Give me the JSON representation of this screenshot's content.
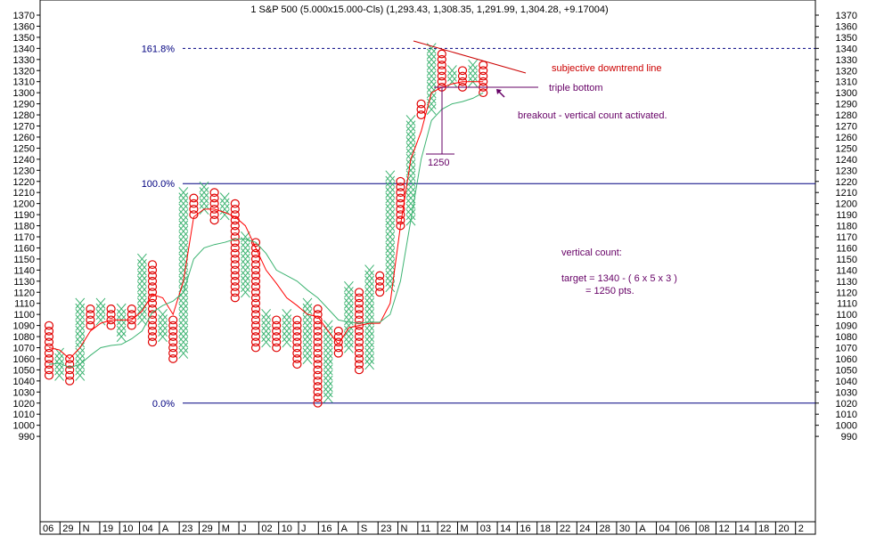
{
  "chart_data": {
    "type": "point-and-figure",
    "title": "1 S&P 500 (5.000x15.000-Cls) (1,293.43, 1,308.35, 1,291.99, 1,304.28, +9.17004)",
    "box_size": 5,
    "reversal": 3,
    "ylim": [
      985,
      1375
    ],
    "y_ticks": [
      990,
      1000,
      1010,
      1020,
      1030,
      1040,
      1050,
      1060,
      1070,
      1080,
      1090,
      1100,
      1110,
      1120,
      1130,
      1140,
      1150,
      1160,
      1170,
      1180,
      1190,
      1200,
      1210,
      1220,
      1230,
      1240,
      1250,
      1260,
      1270,
      1280,
      1290,
      1300,
      1310,
      1320,
      1330,
      1340,
      1350,
      1360,
      1370
    ],
    "x_labels": [
      "06",
      "29",
      "N",
      "19",
      "10",
      "04",
      "A",
      "23",
      "29",
      "M",
      "J",
      "02",
      "10",
      "J",
      "16",
      "A",
      "S",
      "23",
      "N",
      "11",
      "22",
      "M",
      "03",
      "14",
      "16",
      "18",
      "22",
      "24",
      "28",
      "30",
      "A",
      "04",
      "06",
      "08",
      "12",
      "14",
      "18",
      "20",
      "2"
    ],
    "fib_levels": [
      {
        "label": "161.8%",
        "value": 1340,
        "style": "dashed"
      },
      {
        "label": "100.0%",
        "value": 1218,
        "style": "solid"
      },
      {
        "label": "0.0%",
        "value": 1020,
        "style": "solid"
      }
    ],
    "columns": [
      {
        "type": "O",
        "high": 1090,
        "low": 1045
      },
      {
        "type": "X",
        "high": 1065,
        "low": 1045
      },
      {
        "type": "O",
        "high": 1060,
        "low": 1040
      },
      {
        "type": "X",
        "high": 1110,
        "low": 1045
      },
      {
        "type": "O",
        "high": 1105,
        "low": 1090
      },
      {
        "type": "X",
        "high": 1110,
        "low": 1095
      },
      {
        "type": "O",
        "high": 1105,
        "low": 1090
      },
      {
        "type": "X",
        "high": 1105,
        "low": 1080
      },
      {
        "type": "O",
        "high": 1105,
        "low": 1090
      },
      {
        "type": "X",
        "high": 1150,
        "low": 1095
      },
      {
        "type": "O",
        "high": 1145,
        "low": 1075
      },
      {
        "type": "X",
        "high": 1100,
        "low": 1080
      },
      {
        "type": "O",
        "high": 1095,
        "low": 1060
      },
      {
        "type": "X",
        "high": 1210,
        "low": 1065
      },
      {
        "type": "O",
        "high": 1205,
        "low": 1190
      },
      {
        "type": "X",
        "high": 1215,
        "low": 1195
      },
      {
        "type": "O",
        "high": 1210,
        "low": 1185
      },
      {
        "type": "X",
        "high": 1205,
        "low": 1190
      },
      {
        "type": "O",
        "high": 1200,
        "low": 1115
      },
      {
        "type": "X",
        "high": 1170,
        "low": 1120
      },
      {
        "type": "O",
        "high": 1165,
        "low": 1070
      },
      {
        "type": "X",
        "high": 1100,
        "low": 1075
      },
      {
        "type": "O",
        "high": 1095,
        "low": 1070
      },
      {
        "type": "X",
        "high": 1100,
        "low": 1075
      },
      {
        "type": "O",
        "high": 1095,
        "low": 1055
      },
      {
        "type": "X",
        "high": 1110,
        "low": 1060
      },
      {
        "type": "O",
        "high": 1105,
        "low": 1020
      },
      {
        "type": "X",
        "high": 1090,
        "low": 1025
      },
      {
        "type": "O",
        "high": 1085,
        "low": 1065
      },
      {
        "type": "X",
        "high": 1125,
        "low": 1070
      },
      {
        "type": "O",
        "high": 1120,
        "low": 1050
      },
      {
        "type": "X",
        "high": 1140,
        "low": 1055
      },
      {
        "type": "O",
        "high": 1135,
        "low": 1120
      },
      {
        "type": "X",
        "high": 1225,
        "low": 1125
      },
      {
        "type": "O",
        "high": 1220,
        "low": 1180
      },
      {
        "type": "X",
        "high": 1275,
        "low": 1185
      },
      {
        "type": "O",
        "high": 1290,
        "low": 1280
      },
      {
        "type": "X",
        "high": 1340,
        "low": 1285
      },
      {
        "type": "O",
        "high": 1335,
        "low": 1305
      },
      {
        "type": "X",
        "high": 1320,
        "low": 1310
      },
      {
        "type": "O",
        "high": 1320,
        "low": 1305
      },
      {
        "type": "X",
        "high": 1325,
        "low": 1310
      },
      {
        "type": "O",
        "high": 1325,
        "low": 1300
      }
    ],
    "series": [
      {
        "name": "",
        "color": "#ff0000",
        "values": [
          1070,
          1068,
          1060,
          1070,
          1085,
          1092,
          1095,
          1095,
          1095,
          1103,
          1118,
          1115,
          1100,
          1130,
          1188,
          1195,
          1195,
          1192,
          1188,
          1180,
          1160,
          1140,
          1128,
          1115,
          1108,
          1100,
          1098,
          1085,
          1073,
          1088,
          1090,
          1092,
          1092,
          1110,
          1180,
          1240,
          1265,
          1300,
          1305,
          1308,
          1310,
          1310,
          1310
        ]
      },
      {
        "name": "",
        "color": "#3cb371",
        "values": [
          1055,
          1056,
          1052,
          1055,
          1063,
          1070,
          1072,
          1073,
          1078,
          1085,
          1102,
          1108,
          1112,
          1120,
          1150,
          1160,
          1163,
          1165,
          1168,
          1168,
          1165,
          1155,
          1140,
          1135,
          1130,
          1122,
          1115,
          1105,
          1095,
          1093,
          1092,
          1093,
          1093,
          1100,
          1130,
          1185,
          1240,
          1275,
          1285,
          1290,
          1292,
          1295,
          1300
        ]
      }
    ],
    "annotations": {
      "downtrend_label": "subjective downtrend line",
      "triple_bottom_label": "triple bottom",
      "breakout_label": "breakout - vertical count activated.",
      "target_value_label": "1250",
      "vertical_count_title": "vertical count:",
      "vertical_count_formula": "target = 1340 - ( 6 x 5 x 3 )",
      "vertical_count_result": "= 1250 pts."
    }
  },
  "colors": {
    "x_mark": "#3cb371",
    "o_mark": "#e00000",
    "fib_line": "#000080",
    "annotation_red": "#cc0000",
    "annotation_purple": "#660066"
  }
}
